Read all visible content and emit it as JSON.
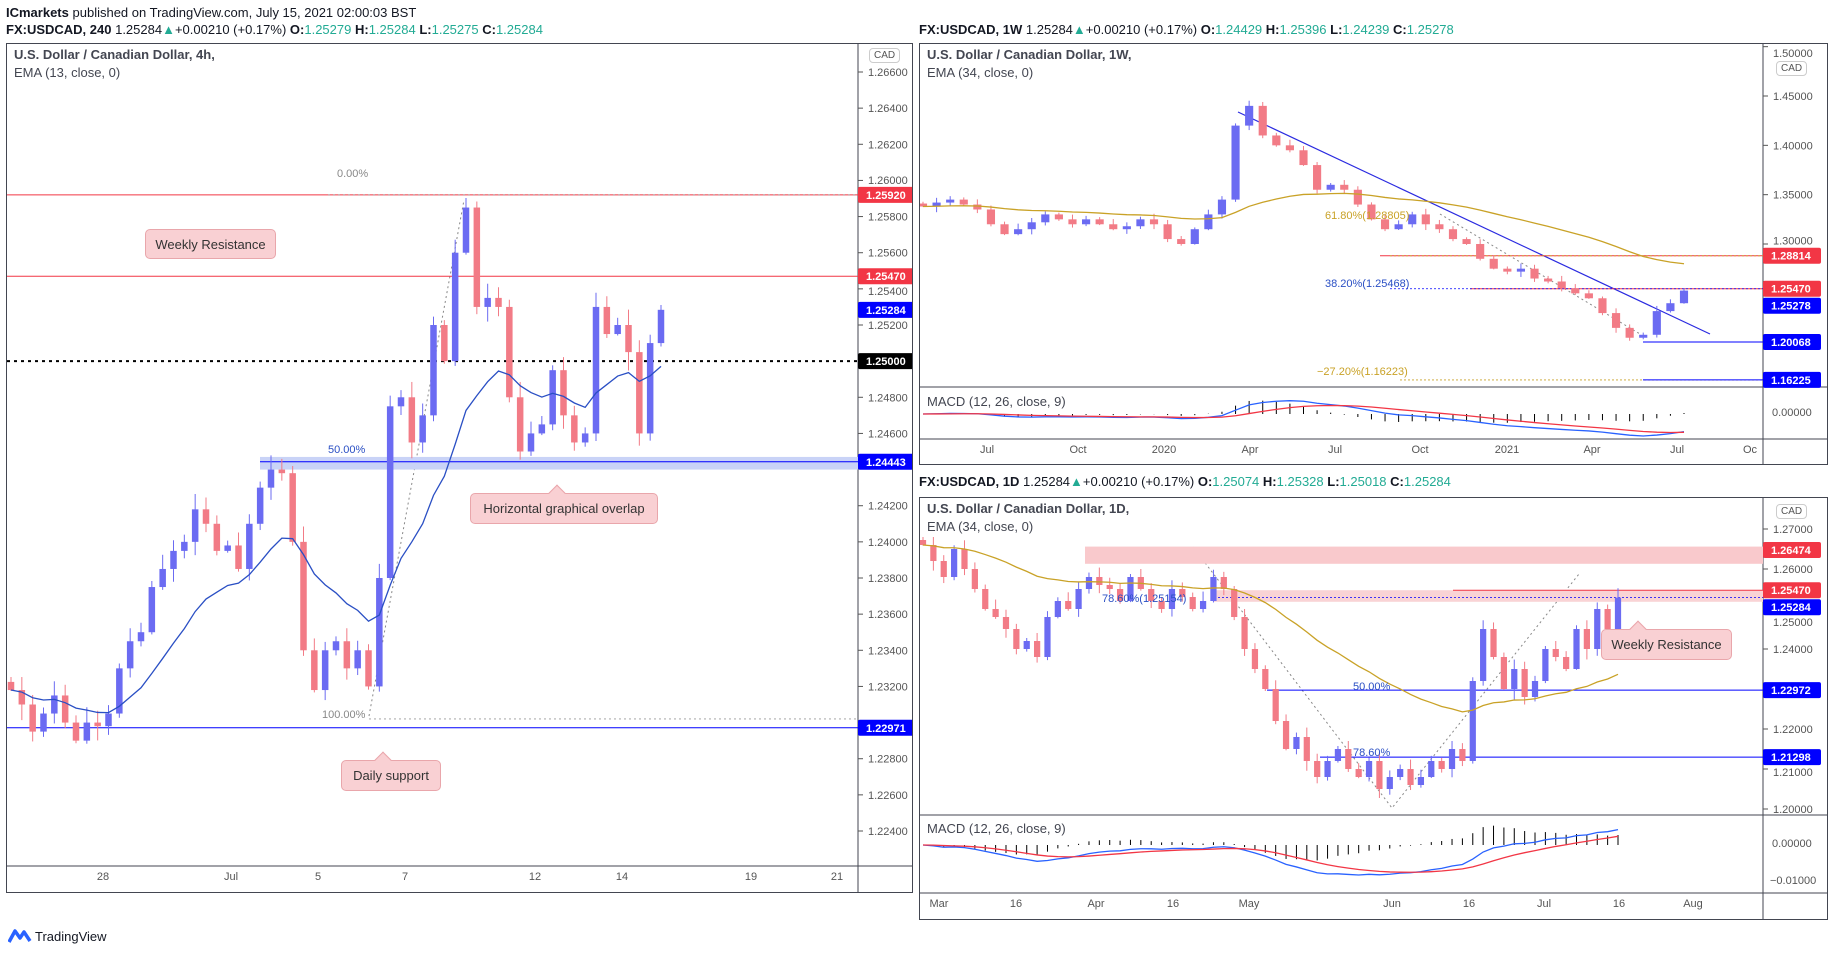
{
  "publish_line": {
    "author": "ICmarkets",
    "text": "published on TradingView.com, July 15, 2021 02:00:03 BST"
  },
  "colors": {
    "up": "#6b6bf2",
    "down": "#f27b86",
    "ema": "#2a4fc4",
    "ema_slow": "#c9a227",
    "resistance": "#f23645",
    "support": "#0000ff",
    "green": "#22ab94"
  },
  "charts": {
    "h4": {
      "header": {
        "symbol": "FX:USDCAD, 240",
        "price": "1.25284",
        "change": "+0.00210 (+0.17%)",
        "o": "1.25279",
        "h": "1.25284",
        "l": "1.25275",
        "c": "1.25284"
      },
      "title": "U.S. Dollar / Canadian Dollar, 4h,",
      "indicator": "EMA (13, close, 0)",
      "currency": "CAD",
      "time_ticks": [
        "28",
        "Jul",
        "5",
        "7",
        "12",
        "14",
        "19",
        "21"
      ],
      "annotations": {
        "weekly_resistance": "Weekly Resistance",
        "overlap": "Horizontal graphical overlap",
        "daily_support": "Daily support",
        "fib_0": "0.00%",
        "fib_50": "50.00%",
        "fib_100": "100.00%"
      }
    },
    "w1": {
      "header": {
        "symbol": "FX:USDCAD, 1W",
        "price": "1.25284",
        "change": "+0.00210 (+0.17%)",
        "o": "1.24429",
        "h": "1.25396",
        "l": "1.24239",
        "c": "1.25278"
      },
      "title": "U.S. Dollar / Canadian Dollar, 1W,",
      "indicator": "EMA (34, close, 0)",
      "macd": "MACD (12, 26, close, 9)",
      "currency": "CAD",
      "macd_tick": "0.00000",
      "time_ticks": [
        "Jul",
        "Oct",
        "2020",
        "Apr",
        "Jul",
        "Oct",
        "2021",
        "Apr",
        "Jul",
        "Oc"
      ],
      "annotations": {
        "fib_618": "61.80%(1.28805)",
        "fib_382": "38.20%(1.25468)",
        "fib_272": "−27.20%(1.16223)"
      }
    },
    "d1": {
      "header": {
        "symbol": "FX:USDCAD, 1D",
        "price": "1.25284",
        "change": "+0.00210 (+0.17%)",
        "o": "1.25074",
        "h": "1.25328",
        "l": "1.25018",
        "c": "1.25284"
      },
      "title": "U.S. Dollar / Canadian Dollar, 1D,",
      "indicator": "EMA (34, close, 0)",
      "macd": "MACD (12, 26, close, 9)",
      "currency": "CAD",
      "macd_ticks": [
        "0.00000",
        "−0.01000"
      ],
      "time_ticks": [
        "Mar",
        "16",
        "Apr",
        "16",
        "May",
        "Jun",
        "16",
        "Jul",
        "16",
        "Aug"
      ],
      "annotations": {
        "weekly_resistance": "Weekly Resistance",
        "fib_786a": "78.60%(1.25154)",
        "fib_50": "50.00%",
        "fib_786b": "78.60%"
      }
    }
  },
  "chart_data": [
    {
      "type": "candlestick",
      "title": "U.S. Dollar / Canadian Dollar, 4h",
      "ylim": [
        1.223,
        1.267
      ],
      "price_ticks": [
        "1.26600",
        "1.26400",
        "1.26200",
        "1.26000",
        "1.25800",
        "1.25600",
        "1.25400",
        "1.25200",
        "1.24800",
        "1.24600",
        "1.24200",
        "1.24000",
        "1.23800",
        "1.23600",
        "1.23400",
        "1.23200",
        "1.22800",
        "1.22600",
        "1.22400"
      ],
      "price_tags": [
        {
          "value": "1.25920",
          "color": "#f23645"
        },
        {
          "value": "1.25470",
          "color": "#f23645"
        },
        {
          "value": "1.25284",
          "color": "#0000ff"
        },
        {
          "value": "1.25000",
          "color": "#000000"
        },
        {
          "value": "1.24443",
          "color": "#0000ff"
        },
        {
          "value": "1.22971",
          "color": "#0000ff"
        }
      ],
      "closes": [
        1.2318,
        1.231,
        1.2295,
        1.2305,
        1.2315,
        1.23,
        1.229,
        1.23,
        1.2298,
        1.2305,
        1.233,
        1.2345,
        1.235,
        1.2375,
        1.2385,
        1.2395,
        1.24,
        1.2418,
        1.241,
        1.2395,
        1.2398,
        1.2385,
        1.241,
        1.243,
        1.244,
        1.2438,
        1.24,
        1.234,
        1.2318,
        1.234,
        1.2345,
        1.233,
        1.234,
        1.232,
        1.238,
        1.2475,
        1.248,
        1.2455,
        1.247,
        1.252,
        1.25,
        1.256,
        1.2585,
        1.253,
        1.2535,
        1.253,
        1.248,
        1.245,
        1.246,
        1.2465,
        1.2495,
        1.247,
        1.2455,
        1.246,
        1.253,
        1.2515,
        1.252,
        1.2505,
        1.246,
        1.251,
        1.25284
      ]
    },
    {
      "type": "candlestick",
      "title": "U.S. Dollar / Canadian Dollar, 1W",
      "ylim": [
        1.15,
        1.5
      ],
      "price_ticks": [
        "1.50000",
        "1.45000",
        "1.40000",
        "1.35000",
        "1.30000"
      ],
      "price_tags": [
        {
          "value": "1.28814",
          "color": "#f23645"
        },
        {
          "value": "1.25470",
          "color": "#f23645"
        },
        {
          "value": "1.25278",
          "color": "#0000ff"
        },
        {
          "value": "1.20068",
          "color": "#0000ff"
        },
        {
          "value": "1.16225",
          "color": "#0000ff"
        }
      ],
      "closes": [
        1.338,
        1.342,
        1.345,
        1.34,
        1.335,
        1.32,
        1.31,
        1.315,
        1.322,
        1.33,
        1.325,
        1.32,
        1.325,
        1.32,
        1.315,
        1.318,
        1.325,
        1.32,
        1.305,
        1.3,
        1.315,
        1.33,
        1.345,
        1.42,
        1.44,
        1.41,
        1.4,
        1.395,
        1.38,
        1.355,
        1.36,
        1.355,
        1.34,
        1.325,
        1.315,
        1.32,
        1.33,
        1.32,
        1.315,
        1.305,
        1.3,
        1.285,
        1.275,
        1.272,
        1.275,
        1.265,
        1.262,
        1.255,
        1.25,
        1.245,
        1.23,
        1.215,
        1.205,
        1.208,
        1.232,
        1.24,
        1.25278
      ]
    },
    {
      "type": "candlestick",
      "title": "U.S. Dollar / Canadian Dollar, 1D",
      "ylim": [
        1.2,
        1.27
      ],
      "price_ticks": [
        "1.27000",
        "1.26000",
        "1.25000",
        "1.24000",
        "1.22000",
        "1.21000",
        "1.20000"
      ],
      "price_tags": [
        {
          "value": "1.26474",
          "color": "#f23645"
        },
        {
          "value": "1.25470",
          "color": "#f23645"
        },
        {
          "value": "1.25284",
          "color": "#0000ff"
        },
        {
          "value": "1.22972",
          "color": "#0000ff"
        },
        {
          "value": "1.21298",
          "color": "#0000ff"
        }
      ],
      "closes": [
        1.266,
        1.262,
        1.258,
        1.265,
        1.26,
        1.255,
        1.25,
        1.248,
        1.245,
        1.24,
        1.242,
        1.238,
        1.248,
        1.252,
        1.25,
        1.255,
        1.258,
        1.256,
        1.255,
        1.252,
        1.258,
        1.255,
        1.252,
        1.25,
        1.255,
        1.253,
        1.25,
        1.252,
        1.258,
        1.255,
        1.248,
        1.24,
        1.235,
        1.23,
        1.222,
        1.215,
        1.218,
        1.212,
        1.208,
        1.212,
        1.215,
        1.21,
        1.208,
        1.212,
        1.205,
        1.208,
        1.21,
        1.206,
        1.208,
        1.212,
        1.21,
        1.215,
        1.212,
        1.232,
        1.245,
        1.238,
        1.23,
        1.235,
        1.228,
        1.232,
        1.24,
        1.238,
        1.235,
        1.245,
        1.24,
        1.25,
        1.245,
        1.25284
      ]
    }
  ],
  "footer": {
    "brand": "TradingView"
  }
}
